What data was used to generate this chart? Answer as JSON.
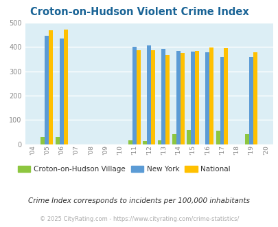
{
  "title": "Croton-on-Hudson Violent Crime Index",
  "title_color": "#1a6496",
  "years": [
    2004,
    2005,
    2006,
    2007,
    2008,
    2009,
    2010,
    2011,
    2012,
    2013,
    2014,
    2015,
    2016,
    2017,
    2018,
    2019,
    2020
  ],
  "croton": [
    0,
    30,
    30,
    0,
    0,
    0,
    0,
    15,
    13,
    15,
    40,
    57,
    0,
    56,
    0,
    40,
    0
  ],
  "new_york": [
    0,
    445,
    435,
    0,
    0,
    0,
    0,
    400,
    406,
    392,
    384,
    381,
    377,
    357,
    0,
    357,
    0
  ],
  "national": [
    0,
    469,
    472,
    0,
    0,
    0,
    0,
    387,
    387,
    367,
    376,
    383,
    398,
    395,
    0,
    379,
    0
  ],
  "color_croton": "#8dc63f",
  "color_ny": "#5b9bd5",
  "color_national": "#ffc000",
  "bg_color": "#dceef5",
  "ylim": [
    0,
    500
  ],
  "yticks": [
    0,
    100,
    200,
    300,
    400,
    500
  ],
  "legend_labels": [
    "Croton-on-Hudson Village",
    "New York",
    "National"
  ],
  "note_text": "Crime Index corresponds to incidents per 100,000 inhabitants",
  "note_color": "#333333",
  "copyright_text": "© 2025 CityRating.com - https://www.cityrating.com/crime-statistics/",
  "copyright_color": "#aaaaaa",
  "bar_width": 0.28
}
